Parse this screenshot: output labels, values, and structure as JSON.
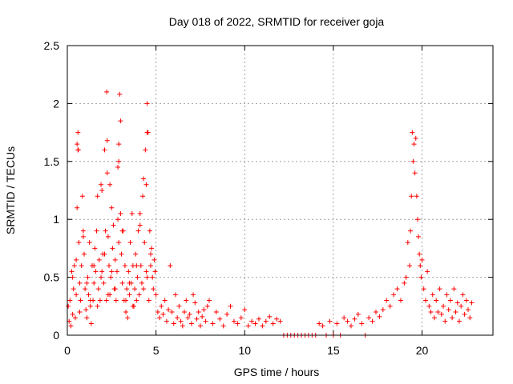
{
  "chart_data": {
    "type": "scatter",
    "title": "Day 018 of 2022, SRMTID for receiver goja",
    "xlabel": "GPS time / hours",
    "ylabel": "SRMTID / TECUs",
    "xlim": [
      0,
      24
    ],
    "ylim": [
      0,
      2.5
    ],
    "grid": true,
    "marker": "+",
    "marker_color": "#ff0000",
    "x_ticks": [
      0,
      5,
      10,
      15,
      20
    ],
    "x_tick_labels": [
      "0",
      "5",
      "10",
      "15",
      "20"
    ],
    "y_ticks": [
      0,
      0.5,
      1,
      1.5,
      2,
      2.5
    ],
    "y_tick_labels": [
      "0",
      "0.5",
      "1",
      "1.5",
      "2",
      "2.5"
    ],
    "series": [
      {
        "name": "SRMTID",
        "x": [
          0.05,
          0.1,
          0.15,
          0.2,
          0.25,
          0.3,
          0.35,
          0.4,
          0.45,
          0.5,
          0.55,
          0.6,
          0.62,
          0.65,
          0.7,
          0.75,
          0.8,
          0.85,
          0.9,
          0.95,
          1.0,
          1.05,
          1.1,
          1.15,
          1.2,
          1.25,
          1.3,
          1.35,
          1.4,
          1.45,
          1.5,
          1.55,
          1.6,
          1.65,
          1.7,
          1.75,
          1.8,
          1.85,
          1.9,
          1.95,
          2.0,
          2.05,
          2.1,
          2.15,
          2.2,
          2.22,
          2.25,
          2.3,
          2.35,
          2.4,
          2.45,
          2.5,
          2.55,
          2.6,
          2.65,
          2.7,
          2.75,
          2.8,
          2.85,
          2.9,
          2.95,
          3.0,
          3.05,
          3.1,
          3.15,
          3.2,
          3.25,
          3.3,
          3.35,
          3.4,
          3.45,
          3.5,
          3.55,
          3.6,
          3.65,
          3.7,
          3.75,
          3.8,
          3.85,
          3.9,
          3.95,
          4.0,
          4.05,
          4.1,
          4.15,
          4.2,
          4.25,
          4.3,
          4.35,
          4.4,
          4.45,
          4.5,
          4.55,
          4.6,
          4.65,
          4.7,
          4.75,
          4.8,
          4.85,
          4.9,
          4.95,
          5.0,
          5.1,
          5.2,
          5.3,
          5.4,
          5.5,
          5.6,
          5.7,
          5.8,
          5.9,
          6.0,
          6.1,
          6.2,
          6.3,
          6.4,
          6.5,
          6.6,
          6.7,
          6.8,
          6.9,
          7.0,
          7.1,
          7.2,
          7.3,
          7.4,
          7.5,
          7.6,
          7.7,
          7.8,
          7.9,
          8.0,
          8.2,
          8.4,
          8.6,
          8.8,
          9.0,
          9.2,
          9.4,
          9.6,
          9.8,
          10.0,
          10.2,
          10.4,
          10.6,
          10.8,
          11.0,
          11.2,
          11.4,
          11.6,
          11.8,
          12.0,
          12.2,
          12.4,
          12.6,
          12.8,
          13.0,
          13.2,
          13.4,
          13.6,
          13.8,
          14.0,
          14.2,
          14.4,
          14.6,
          14.8,
          15.0,
          15.2,
          15.4,
          15.6,
          15.8,
          16.0,
          16.2,
          16.4,
          16.6,
          16.8,
          17.0,
          17.2,
          17.4,
          17.6,
          17.8,
          18.0,
          18.2,
          18.4,
          18.6,
          18.8,
          19.0,
          19.1,
          19.2,
          19.3,
          19.35,
          19.4,
          19.45,
          19.5,
          19.55,
          19.6,
          19.65,
          19.7,
          19.75,
          19.8,
          19.85,
          19.9,
          19.95,
          20.0,
          20.1,
          20.2,
          20.3,
          20.4,
          20.5,
          20.6,
          20.7,
          20.8,
          20.9,
          21.0,
          21.1,
          21.2,
          21.3,
          21.4,
          21.5,
          21.6,
          21.7,
          21.8,
          21.9,
          22.0,
          22.1,
          22.2,
          22.3,
          22.4,
          22.5,
          22.6,
          22.7,
          22.8,
          0.3,
          0.5,
          0.7,
          0.9,
          1.1,
          1.3,
          1.5,
          1.7,
          1.9,
          2.1,
          2.3,
          2.5,
          2.7,
          2.9,
          3.1,
          3.3,
          3.5,
          3.7,
          3.9,
          4.1,
          4.3,
          4.5,
          4.7,
          0.55,
          0.6,
          2.25,
          2.85,
          2.9,
          4.45,
          4.5,
          1.95,
          2.4,
          3.0
        ],
        "y": [
          0.25,
          0.12,
          0.3,
          0.08,
          0.55,
          0.18,
          0.4,
          0.6,
          0.15,
          0.35,
          1.1,
          1.75,
          1.6,
          0.8,
          0.45,
          0.3,
          0.6,
          1.2,
          0.9,
          0.7,
          0.4,
          0.22,
          0.15,
          0.5,
          0.35,
          0.8,
          0.25,
          0.1,
          0.6,
          0.3,
          0.45,
          0.75,
          0.55,
          0.9,
          1.2,
          0.4,
          0.65,
          0.3,
          1.3,
          0.55,
          0.7,
          0.45,
          1.6,
          0.9,
          0.3,
          2.1,
          1.4,
          0.85,
          0.6,
          0.35,
          0.5,
          1.1,
          0.75,
          0.95,
          0.4,
          0.65,
          0.3,
          0.55,
          1.0,
          1.5,
          2.08,
          1.85,
          0.7,
          0.45,
          0.9,
          0.3,
          0.6,
          0.2,
          0.4,
          0.15,
          0.55,
          0.35,
          0.8,
          0.45,
          1.05,
          0.6,
          0.25,
          0.4,
          0.7,
          0.3,
          0.5,
          0.9,
          0.35,
          1.05,
          0.6,
          0.45,
          1.2,
          1.35,
          0.8,
          1.6,
          0.55,
          2.0,
          1.75,
          0.3,
          0.9,
          0.6,
          0.75,
          0.5,
          0.4,
          0.65,
          0.55,
          0.35,
          0.2,
          0.15,
          0.25,
          0.18,
          0.3,
          0.12,
          0.22,
          0.6,
          0.2,
          0.1,
          0.35,
          0.15,
          0.25,
          0.12,
          0.08,
          0.2,
          0.3,
          0.15,
          0.18,
          0.1,
          0.35,
          0.28,
          0.14,
          0.2,
          0.08,
          0.16,
          0.22,
          0.12,
          0.25,
          0.3,
          0.1,
          0.2,
          0.14,
          0.08,
          0.18,
          0.25,
          0.12,
          0.1,
          0.15,
          0.22,
          0.08,
          0.12,
          0.1,
          0.14,
          0.08,
          0.12,
          0.16,
          0.1,
          0.14,
          0.12,
          0.0,
          0.0,
          0.0,
          0.0,
          0.0,
          0.0,
          0.0,
          0.0,
          0.0,
          0.0,
          0.1,
          0.08,
          0.0,
          0.12,
          0.0,
          0.1,
          0.0,
          0.15,
          0.12,
          0.08,
          0.14,
          0.18,
          0.1,
          0.0,
          0.15,
          0.12,
          0.2,
          0.16,
          0.22,
          0.3,
          0.25,
          0.35,
          0.4,
          0.3,
          0.45,
          0.5,
          0.8,
          0.6,
          0.9,
          1.2,
          1.75,
          1.5,
          1.65,
          1.4,
          1.7,
          1.2,
          1.0,
          0.85,
          0.7,
          0.6,
          0.5,
          0.65,
          0.4,
          0.3,
          0.55,
          0.25,
          0.2,
          0.35,
          0.15,
          0.3,
          0.2,
          0.4,
          0.18,
          0.25,
          0.12,
          0.35,
          0.22,
          0.3,
          0.15,
          0.4,
          0.2,
          0.28,
          0.12,
          0.25,
          0.35,
          0.18,
          0.3,
          0.22,
          0.15,
          0.28,
          0.5,
          0.65,
          0.2,
          0.85,
          0.45,
          0.3,
          0.6,
          0.25,
          0.5,
          0.7,
          0.35,
          0.55,
          0.4,
          0.8,
          0.9,
          0.3,
          0.45,
          0.25,
          0.6,
          0.95,
          0.4,
          0.5,
          0.7,
          1.65,
          1.6,
          1.68,
          1.45,
          1.65,
          1.3,
          1.75,
          1.25,
          1.3,
          1.05
        ]
      }
    ]
  }
}
